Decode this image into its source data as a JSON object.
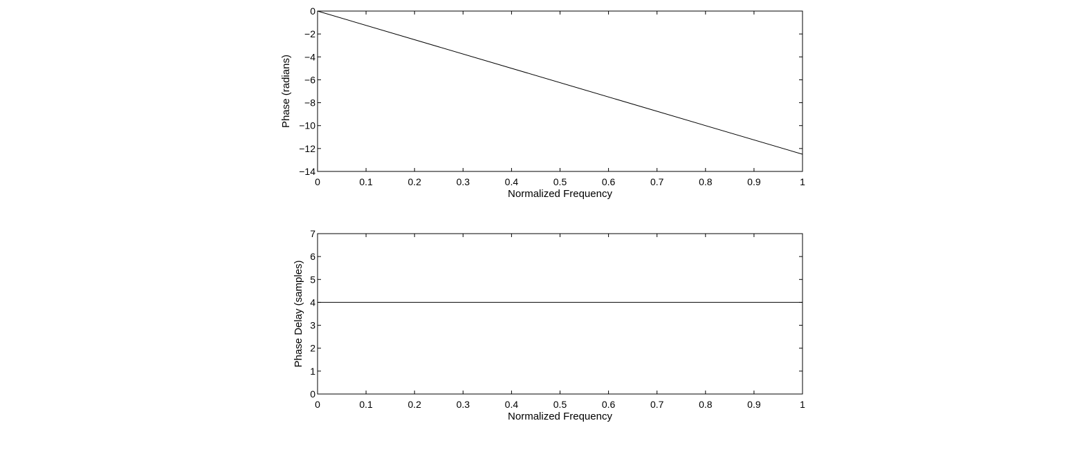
{
  "chart_data": [
    {
      "type": "line",
      "title": "",
      "xlabel": "Normalized Frequency",
      "ylabel": "Phase (radians)",
      "xlim": [
        0,
        1
      ],
      "ylim": [
        -14,
        0
      ],
      "xticks": [
        0,
        0.1,
        0.2,
        0.3,
        0.4,
        0.5,
        0.6,
        0.7,
        0.8,
        0.9,
        1
      ],
      "xtick_labels": [
        "0",
        "0.1",
        "0.2",
        "0.3",
        "0.4",
        "0.5",
        "0.6",
        "0.7",
        "0.8",
        "0.9",
        "1"
      ],
      "yticks": [
        -14,
        -12,
        -10,
        -8,
        -6,
        -4,
        -2,
        0
      ],
      "ytick_labels": [
        "−14",
        "−12",
        "−10",
        "−8",
        "−6",
        "−4",
        "−2",
        "0"
      ],
      "grid": false,
      "line_color": "#000000",
      "series": [
        {
          "x": [
            0,
            1
          ],
          "y": [
            0,
            -12.5
          ]
        }
      ]
    },
    {
      "type": "line",
      "title": "",
      "xlabel": "Normalized Frequency",
      "ylabel": "Phase Delay (samples)",
      "xlim": [
        0,
        1
      ],
      "ylim": [
        0,
        7
      ],
      "xticks": [
        0,
        0.1,
        0.2,
        0.3,
        0.4,
        0.5,
        0.6,
        0.7,
        0.8,
        0.9,
        1
      ],
      "xtick_labels": [
        "0",
        "0.1",
        "0.2",
        "0.3",
        "0.4",
        "0.5",
        "0.6",
        "0.7",
        "0.8",
        "0.9",
        "1"
      ],
      "yticks": [
        0,
        1,
        2,
        3,
        4,
        5,
        6,
        7
      ],
      "ytick_labels": [
        "0",
        "1",
        "2",
        "3",
        "4",
        "5",
        "6",
        "7"
      ],
      "grid": false,
      "line_color": "#000000",
      "series": [
        {
          "x": [
            0,
            1
          ],
          "y": [
            4,
            4
          ]
        }
      ]
    }
  ]
}
